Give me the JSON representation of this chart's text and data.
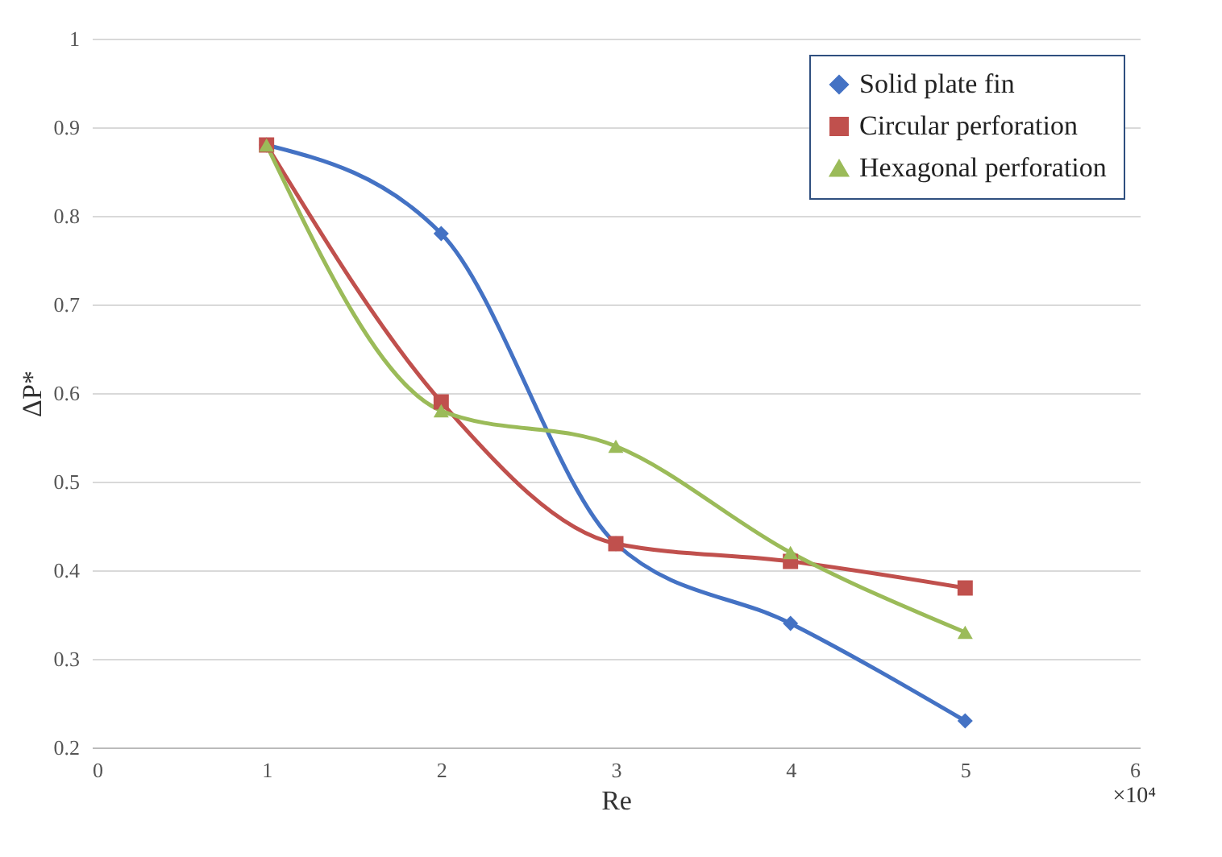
{
  "chart_data": {
    "type": "line",
    "xlabel": "Re",
    "ylabel": "ΔP*",
    "x": [
      1,
      2,
      3,
      4,
      5
    ],
    "xlim": [
      0,
      6
    ],
    "xticks": [
      0,
      1,
      2,
      3,
      4,
      5,
      6
    ],
    "ylim": [
      0.2,
      1
    ],
    "yticks": [
      0.2,
      0.3,
      0.4,
      0.5,
      0.6,
      0.7,
      0.8,
      0.9,
      1
    ],
    "grid": "y",
    "legend": "top right",
    "annotations": [
      "×10⁴"
    ],
    "series": [
      {
        "name": "Solid plate fin",
        "color": "#4472c4",
        "marker": "diamond",
        "values": [
          0.88,
          0.78,
          0.43,
          0.34,
          0.23
        ]
      },
      {
        "name": "Circular perforation",
        "color": "#c0504d",
        "marker": "square",
        "values": [
          0.88,
          0.59,
          0.43,
          0.41,
          0.38
        ]
      },
      {
        "name": "Hexagonal perforation",
        "color": "#9bbb59",
        "marker": "triangle",
        "values": [
          0.88,
          0.58,
          0.54,
          0.42,
          0.33
        ]
      }
    ]
  }
}
